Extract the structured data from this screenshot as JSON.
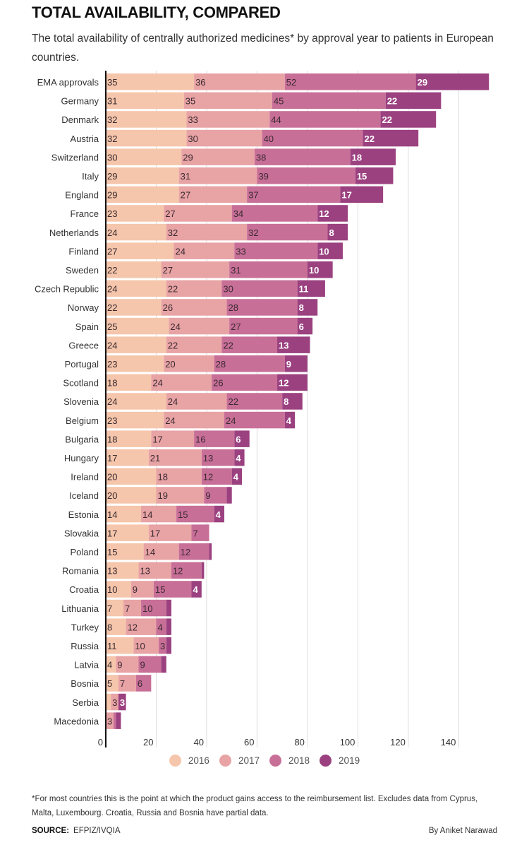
{
  "header": {
    "title": "TOTAL AVAILABILITY, COMPARED",
    "subtitle": "The total availability of centrally authorized medicines* by approval year to patients in European countries."
  },
  "chart_data": {
    "type": "bar",
    "orientation": "horizontal",
    "stacked": true,
    "title": "TOTAL AVAILABILITY, COMPARED",
    "xlabel": "",
    "ylabel": "",
    "xlim": [
      0,
      152
    ],
    "xticks": [
      0,
      20,
      40,
      60,
      80,
      100,
      120,
      140
    ],
    "grid": true,
    "legend_position": "bottom-center",
    "categories": [
      "EMA approvals",
      "Germany",
      "Denmark",
      "Austria",
      "Switzerland",
      "Italy",
      "England",
      "France",
      "Netherlands",
      "Finland",
      "Sweden",
      "Czech Republic",
      "Norway",
      "Spain",
      "Greece",
      "Portugal",
      "Scotland",
      "Slovenia",
      "Belgium",
      "Bulgaria",
      "Hungary",
      "Ireland",
      "Iceland",
      "Estonia",
      "Slovakia",
      "Poland",
      "Romania",
      "Croatia",
      "Lithuania",
      "Turkey",
      "Russia",
      "Latvia",
      "Bosnia",
      "Serbia",
      "Macedonia"
    ],
    "series": [
      {
        "name": "2016",
        "color": "#f5c6ab",
        "values": [
          35,
          31,
          32,
          32,
          30,
          29,
          29,
          23,
          24,
          27,
          22,
          24,
          22,
          25,
          24,
          23,
          18,
          24,
          23,
          18,
          17,
          20,
          20,
          14,
          17,
          15,
          13,
          10,
          7,
          8,
          11,
          4,
          5,
          2,
          0
        ],
        "labeled": [
          true,
          true,
          true,
          true,
          true,
          true,
          true,
          true,
          true,
          true,
          true,
          true,
          true,
          true,
          true,
          true,
          true,
          true,
          true,
          true,
          true,
          true,
          true,
          true,
          true,
          true,
          true,
          true,
          true,
          true,
          true,
          true,
          true,
          false,
          false
        ]
      },
      {
        "name": "2017",
        "color": "#e8a3a5",
        "values": [
          36,
          35,
          33,
          30,
          29,
          31,
          27,
          27,
          32,
          24,
          27,
          22,
          26,
          24,
          22,
          20,
          24,
          24,
          24,
          17,
          21,
          18,
          19,
          14,
          17,
          14,
          13,
          9,
          7,
          12,
          10,
          9,
          7,
          3,
          3
        ],
        "labeled": [
          true,
          true,
          true,
          true,
          true,
          true,
          true,
          true,
          true,
          true,
          true,
          true,
          true,
          true,
          true,
          true,
          true,
          true,
          true,
          true,
          true,
          true,
          true,
          true,
          true,
          true,
          true,
          true,
          true,
          true,
          true,
          true,
          true,
          true,
          true
        ]
      },
      {
        "name": "2018",
        "color": "#c86f98",
        "values": [
          52,
          45,
          44,
          40,
          38,
          39,
          37,
          34,
          32,
          33,
          31,
          30,
          28,
          27,
          22,
          28,
          26,
          22,
          24,
          16,
          13,
          12,
          9,
          15,
          7,
          12,
          12,
          15,
          10,
          4,
          3,
          9,
          6,
          0,
          1
        ],
        "labeled": [
          true,
          true,
          true,
          true,
          true,
          true,
          true,
          true,
          true,
          true,
          true,
          true,
          true,
          true,
          true,
          true,
          true,
          true,
          true,
          true,
          true,
          true,
          true,
          true,
          true,
          true,
          true,
          true,
          true,
          true,
          true,
          true,
          true,
          false,
          false
        ]
      },
      {
        "name": "2019",
        "color": "#9b4180",
        "values": [
          29,
          22,
          22,
          22,
          18,
          15,
          17,
          12,
          8,
          10,
          10,
          11,
          8,
          6,
          13,
          9,
          12,
          8,
          4,
          6,
          4,
          4,
          2,
          4,
          0,
          1,
          1,
          4,
          2,
          2,
          2,
          2,
          0,
          3,
          2
        ],
        "labeled": [
          true,
          true,
          true,
          true,
          true,
          true,
          true,
          true,
          true,
          true,
          true,
          true,
          true,
          true,
          true,
          true,
          true,
          true,
          true,
          true,
          true,
          true,
          false,
          true,
          false,
          false,
          false,
          true,
          false,
          false,
          false,
          false,
          false,
          true,
          false
        ]
      }
    ]
  },
  "legend": {
    "items": [
      {
        "label": "2016",
        "color": "#f5c6ab"
      },
      {
        "label": "2017",
        "color": "#e8a3a5"
      },
      {
        "label": "2018",
        "color": "#c86f98"
      },
      {
        "label": "2019",
        "color": "#9b4180"
      }
    ]
  },
  "footer": {
    "footnote": "*For most countries this is the point at which the product gains access to the reimbursement list. Excludes data from Cyprus, Malta, Luxembourg. Croatia, Russia and Bosnia have partial data.",
    "source_label": "SOURCE:",
    "source_value": "EFPIZ/IVQIA",
    "byline": "By Aniket Narawad"
  }
}
